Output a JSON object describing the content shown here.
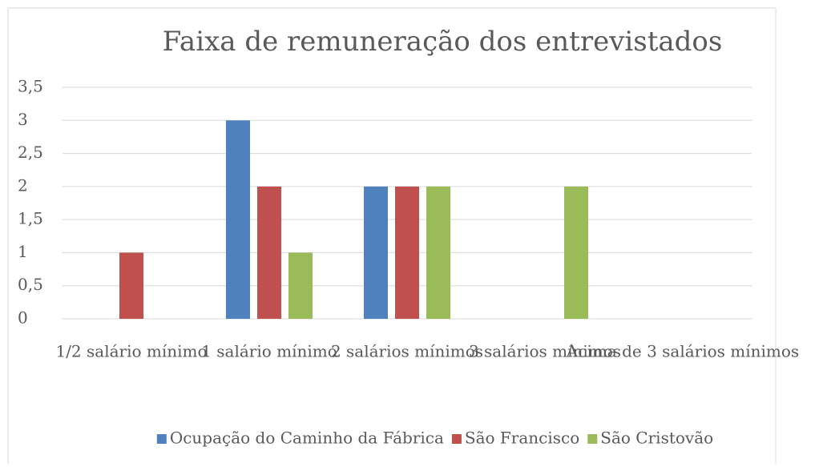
{
  "chart_data": {
    "type": "bar",
    "title": "Faixa de remuneração dos entrevistados",
    "categories": [
      "1/2 salário mínimo",
      "1 salário mínimo",
      "2 salários mínimos",
      "3 salários mínimos",
      "Acima de 3 salários mínimos"
    ],
    "series": [
      {
        "name": "Ocupação do Caminho da Fábrica",
        "color": "#4f81bd",
        "values": [
          0,
          3,
          2,
          0,
          0
        ]
      },
      {
        "name": "São Francisco",
        "color": "#c0504d",
        "values": [
          1,
          2,
          2,
          0,
          0
        ]
      },
      {
        "name": "São Cristovão",
        "color": "#9bbb59",
        "values": [
          0,
          1,
          2,
          2,
          0
        ]
      }
    ],
    "ylim": [
      0,
      3.5
    ],
    "yticks": [
      0,
      {
        "value": 0.5,
        "label": "0,5"
      },
      1,
      {
        "value": 1.5,
        "label": "1,5"
      },
      2,
      {
        "value": 2.5,
        "label": "2,5"
      },
      3,
      {
        "value": 3.5,
        "label": "3,5"
      }
    ],
    "grid": true,
    "legend": "bottom"
  }
}
